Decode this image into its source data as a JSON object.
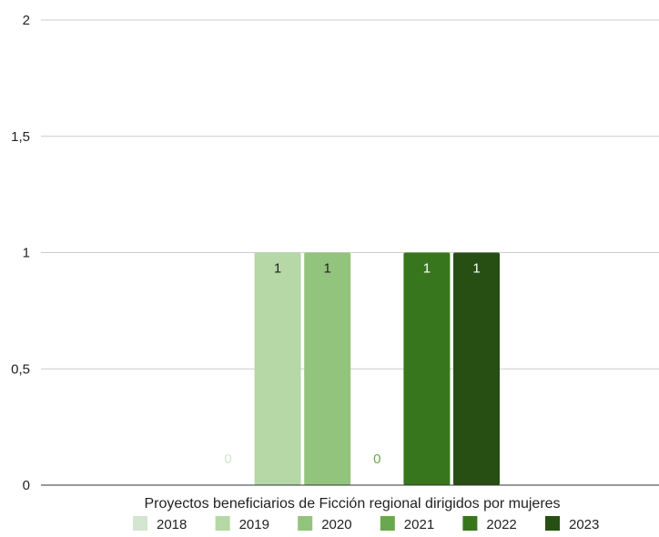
{
  "chart_data": {
    "type": "bar",
    "categories": [
      "Proyectos beneficiarios de Ficción regional dirigidos por mujeres"
    ],
    "xlabel": "Proyectos beneficiarios de Ficción regional dirigidos por mujeres",
    "ylabel": "",
    "ylim": [
      0,
      2
    ],
    "yticks": [
      {
        "value": 0,
        "label": "0"
      },
      {
        "value": 0.5,
        "label": "0,5"
      },
      {
        "value": 1,
        "label": "1"
      },
      {
        "value": 1.5,
        "label": "1,5"
      },
      {
        "value": 2,
        "label": "2"
      }
    ],
    "grid": true,
    "legend_position": "bottom",
    "series": [
      {
        "name": "2018",
        "values": [
          0
        ],
        "label": "0",
        "color": "#d3e6cf",
        "label_color": "#d3e6cf"
      },
      {
        "name": "2019",
        "values": [
          1
        ],
        "label": "1",
        "color": "#b5d8a6",
        "label_color": "#222222"
      },
      {
        "name": "2020",
        "values": [
          1
        ],
        "label": "1",
        "color": "#93c47d",
        "label_color": "#222222"
      },
      {
        "name": "2021",
        "values": [
          0
        ],
        "label": "0",
        "color": "#6aa84f",
        "label_color": "#6aa84f"
      },
      {
        "name": "2022",
        "values": [
          1
        ],
        "label": "1",
        "color": "#38761d",
        "label_color": "#ffffff"
      },
      {
        "name": "2023",
        "values": [
          1
        ],
        "label": "1",
        "color": "#274e13",
        "label_color": "#ffffff"
      }
    ]
  }
}
